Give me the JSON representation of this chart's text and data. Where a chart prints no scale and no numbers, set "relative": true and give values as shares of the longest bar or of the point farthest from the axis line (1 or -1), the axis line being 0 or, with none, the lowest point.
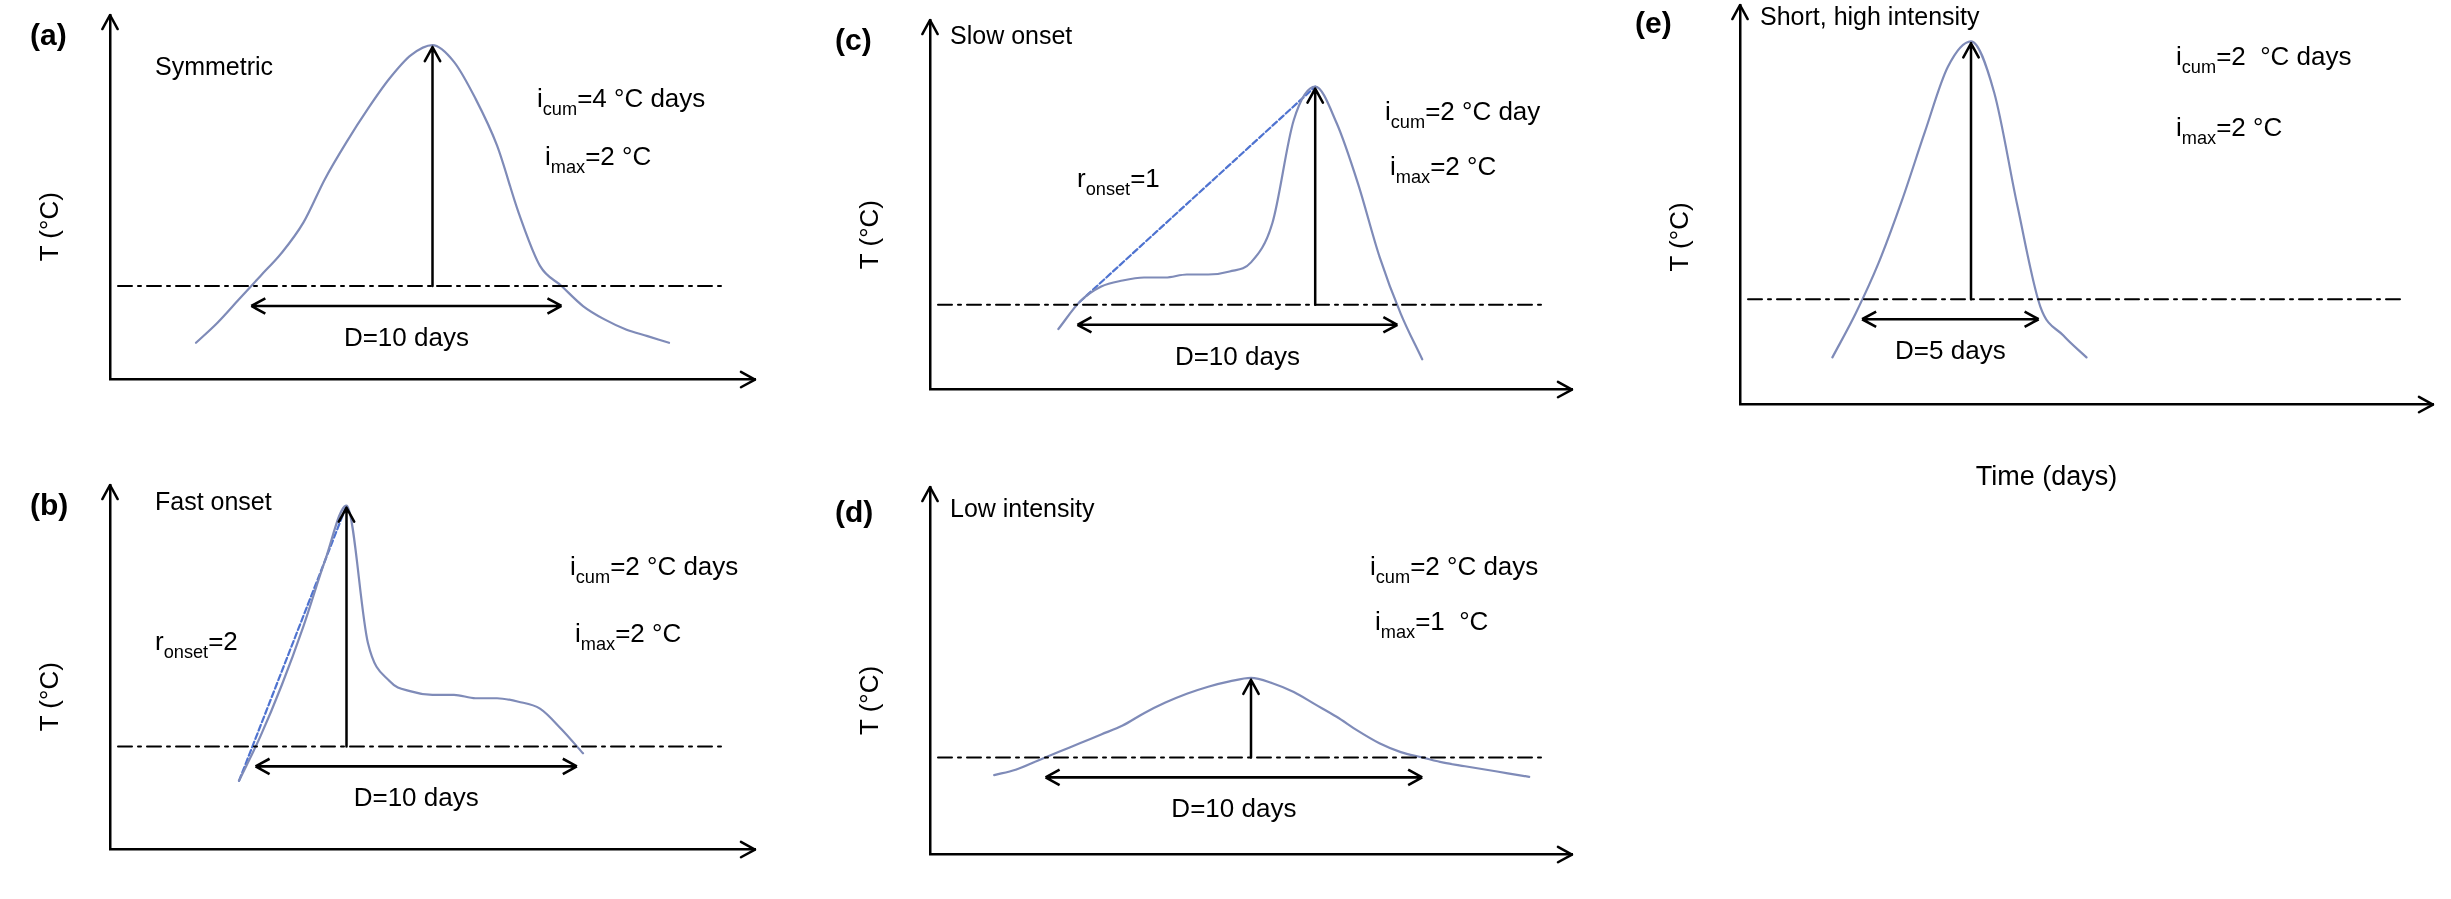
{
  "chart_data": [
    {
      "type": "line",
      "title": "(a)",
      "subtitle": "Symmetric",
      "ylabel": "T (°C)",
      "relative": true,
      "categories": [
        null,
        null,
        null,
        null,
        null,
        null,
        null,
        null,
        null,
        null,
        null,
        null,
        null,
        null,
        null,
        null,
        null,
        null,
        null,
        null,
        null,
        null,
        null,
        null,
        null,
        null,
        null,
        null,
        null,
        null,
        null
      ],
      "series": [
        {
          "color": "#7f8bb8",
          "values": [
            null,
            null,
            null,
            null,
            0.11,
            0.17,
            0.24,
            0.31,
            0.38,
            0.47,
            0.6,
            0.71,
            0.81,
            0.9,
            0.97,
            1,
            0.95,
            0.84,
            0.7,
            0.5,
            0.34,
            0.28,
            0.22,
            0.18,
            0.15,
            0.13,
            0.11,
            null,
            null,
            null,
            null
          ]
        }
      ],
      "ref_lines": [
        {
          "axis": "y",
          "value": 0.28,
          "color": "#000000",
          "line_style": "dashed"
        }
      ],
      "annotations": [
        "i$_{cum}$=4 °C days",
        "i$_{max}$=2 °C",
        "D=10 days"
      ]
    },
    {
      "type": "line",
      "title": "(b)",
      "subtitle": "Fast onset",
      "ylabel": "T (°C)",
      "relative": true,
      "categories": [
        null,
        null,
        null,
        null,
        null,
        null,
        null,
        null,
        null,
        null,
        null,
        null,
        null,
        null,
        null,
        null,
        null,
        null,
        null,
        null,
        null,
        null,
        null,
        null,
        null,
        null,
        null,
        null,
        null,
        null,
        null
      ],
      "series": [
        {
          "color": "#7f8bb8",
          "values": [
            null,
            null,
            null,
            null,
            null,
            null,
            0.2,
            0.33,
            0.48,
            0.65,
            0.84,
            1,
            0.6,
            0.49,
            0.46,
            0.45,
            0.45,
            0.44,
            0.44,
            0.43,
            0.41,
            0.35,
            0.28,
            null,
            null,
            null,
            null,
            null,
            null,
            null,
            null
          ]
        },
        {
          "type": "line",
          "color": "#4f73d0",
          "line_style": "dashed",
          "values": [
            null,
            null,
            null,
            null,
            null,
            null,
            0.2,
            null,
            null,
            null,
            null,
            1,
            null,
            null,
            null,
            null,
            null,
            null,
            null,
            null,
            null,
            null,
            null,
            null,
            null,
            null,
            null,
            null,
            null,
            null,
            null
          ]
        }
      ],
      "ref_lines": [
        {
          "axis": "y",
          "value": 0.3,
          "color": "#000000",
          "line_style": "dashed"
        }
      ],
      "annotations": [
        "r$_{onset}$=2",
        "i$_{cum}$=2 °C days",
        "i$_{max}$=2 °C",
        "D=10 days"
      ]
    },
    {
      "type": "line",
      "title": "(c)",
      "subtitle": "Slow onset",
      "ylabel": "T (°C)",
      "relative": true,
      "categories": [
        null,
        null,
        null,
        null,
        null,
        null,
        null,
        null,
        null,
        null,
        null,
        null,
        null,
        null,
        null,
        null,
        null,
        null,
        null,
        null,
        null,
        null,
        null,
        null,
        null,
        null,
        null,
        null,
        null,
        null,
        null
      ],
      "series": [
        {
          "color": "#7f8bb8",
          "values": [
            null,
            null,
            null,
            null,
            null,
            null,
            0.2,
            0.29,
            0.34,
            0.36,
            0.37,
            0.37,
            0.38,
            0.38,
            0.39,
            0.42,
            0.55,
            0.89,
            1,
            0.88,
            0.68,
            0.44,
            0.25,
            0.1,
            null,
            null,
            null,
            null,
            null,
            null,
            null
          ]
        },
        {
          "type": "line",
          "color": "#4f73d0",
          "line_style": "dashed",
          "values": [
            null,
            null,
            null,
            null,
            null,
            null,
            null,
            0.29,
            null,
            null,
            null,
            null,
            null,
            null,
            null,
            null,
            null,
            null,
            1,
            null,
            null,
            null,
            null,
            null,
            null,
            null,
            null,
            null,
            null,
            null,
            null
          ]
        }
      ],
      "ref_lines": [
        {
          "axis": "y",
          "value": 0.28,
          "color": "#000000",
          "line_style": "dashed"
        }
      ],
      "annotations": [
        "r$_{onset}$=1",
        "i$_{cum}$=2 °C day",
        "i$_{max}$=2 °C",
        "D=10 days"
      ]
    },
    {
      "type": "line",
      "title": "(d)",
      "subtitle": "Low intensity",
      "ylabel": "T (°C)",
      "relative": true,
      "categories": [
        null,
        null,
        null,
        null,
        null,
        null,
        null,
        null,
        null,
        null,
        null,
        null,
        null,
        null,
        null,
        null,
        null,
        null,
        null,
        null,
        null,
        null,
        null,
        null,
        null,
        null,
        null,
        null,
        null,
        null,
        null
      ],
      "series": [
        {
          "color": "#7f8bb8",
          "values": [
            null,
            null,
            null,
            0.45,
            0.48,
            0.53,
            0.58,
            0.63,
            0.68,
            0.73,
            0.8,
            0.86,
            0.91,
            0.95,
            0.98,
            1,
            0.97,
            0.92,
            0.85,
            0.78,
            0.7,
            0.63,
            0.58,
            0.55,
            0.52,
            0.5,
            0.48,
            0.46,
            0.44,
            null,
            null
          ]
        }
      ],
      "ref_lines": [
        {
          "axis": "y",
          "value": 0.55,
          "color": "#000000",
          "line_style": "dashed"
        }
      ],
      "annotations": [
        "i$_{cum}$=2 °C days",
        "i$_{max}$=1  °C",
        "D=10 days"
      ]
    },
    {
      "type": "line",
      "title": "(e)",
      "subtitle": "Short, high intensity",
      "ylabel": "T (°C)",
      "xlabel": "Time (days)",
      "relative": true,
      "categories": [
        null,
        null,
        null,
        null,
        null,
        null,
        null,
        null,
        null,
        null,
        null,
        null,
        null,
        null,
        null,
        null,
        null,
        null,
        null,
        null,
        null,
        null,
        null,
        null,
        null,
        null,
        null,
        null,
        null,
        null,
        null
      ],
      "series": [
        {
          "color": "#7f8bb8",
          "values": [
            null,
            null,
            null,
            null,
            0.13,
            0.25,
            0.39,
            0.56,
            0.75,
            0.93,
            1,
            0.86,
            0.55,
            0.27,
            0.19,
            0.13,
            null,
            null,
            null,
            null,
            null,
            null,
            null,
            null,
            null,
            null,
            null,
            null,
            null,
            null,
            null
          ]
        }
      ],
      "ref_lines": [
        {
          "axis": "y",
          "value": 0.29,
          "color": "#000000",
          "line_style": "dashed"
        }
      ],
      "annotations": [
        "i$_{cum}$=2  °C days",
        "i$_{max}$=2 °C",
        "D=5 days"
      ]
    }
  ]
}
